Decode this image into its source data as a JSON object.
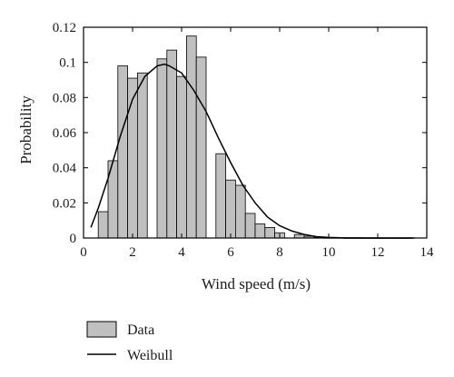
{
  "chart_data": {
    "type": "bar",
    "xlabel": "Wind speed (m/s)",
    "ylabel": "Probability",
    "xlim": [
      0,
      14
    ],
    "ylim": [
      0,
      0.12
    ],
    "xticks": [
      "0",
      "2",
      "4",
      "6",
      "8",
      "10",
      "12",
      "14"
    ],
    "yticks": [
      "0",
      "0.02",
      "0.04",
      "0.06",
      "0.08",
      "0.1",
      "0.12"
    ],
    "grid": false,
    "legend_position": "bottom-left (below plot)",
    "bar_width": 0.4,
    "series": [
      {
        "name": "Data",
        "type": "bar",
        "color": "#c0c0c0",
        "x": [
          0.8,
          1.2,
          1.6,
          2.0,
          2.4,
          2.8,
          3.2,
          3.6,
          4.0,
          4.4,
          4.8,
          5.2,
          5.6,
          6.0,
          6.4,
          6.8,
          7.2,
          7.6,
          8.0,
          8.4,
          8.8,
          9.2,
          9.6,
          10.0,
          10.4,
          10.8,
          11.2,
          11.6,
          12.0,
          12.4,
          12.8,
          13.2
        ],
        "values": [
          0.015,
          0.044,
          0.098,
          0.091,
          0.094,
          0.0,
          0.102,
          0.107,
          0.092,
          0.115,
          0.103,
          0.0,
          0.048,
          0.033,
          0.03,
          0.014,
          0.008,
          0.006,
          0.003,
          0.0,
          0.002,
          0.001,
          0.0003,
          0.0002,
          0.0002,
          0.0001,
          0.0001,
          0.0001,
          0.0001,
          0.0001,
          0.0001,
          0.0001
        ]
      },
      {
        "name": "Weibull",
        "type": "line",
        "color": "#000000",
        "x": [
          0.3,
          0.6,
          1.0,
          1.5,
          2.0,
          2.5,
          3.0,
          3.3,
          3.5,
          4.0,
          4.5,
          5.0,
          5.5,
          6.0,
          6.5,
          7.0,
          7.5,
          8.0,
          8.5,
          9.0,
          9.5,
          10.0,
          10.5,
          11.0,
          12.0,
          13.0,
          13.5
        ],
        "values": [
          0.006,
          0.017,
          0.034,
          0.058,
          0.079,
          0.092,
          0.098,
          0.099,
          0.098,
          0.094,
          0.084,
          0.072,
          0.057,
          0.043,
          0.03,
          0.02,
          0.012,
          0.007,
          0.004,
          0.002,
          0.0008,
          0.0003,
          0.0001,
          5e-05,
          0.0,
          0.0,
          0.0
        ]
      }
    ]
  }
}
